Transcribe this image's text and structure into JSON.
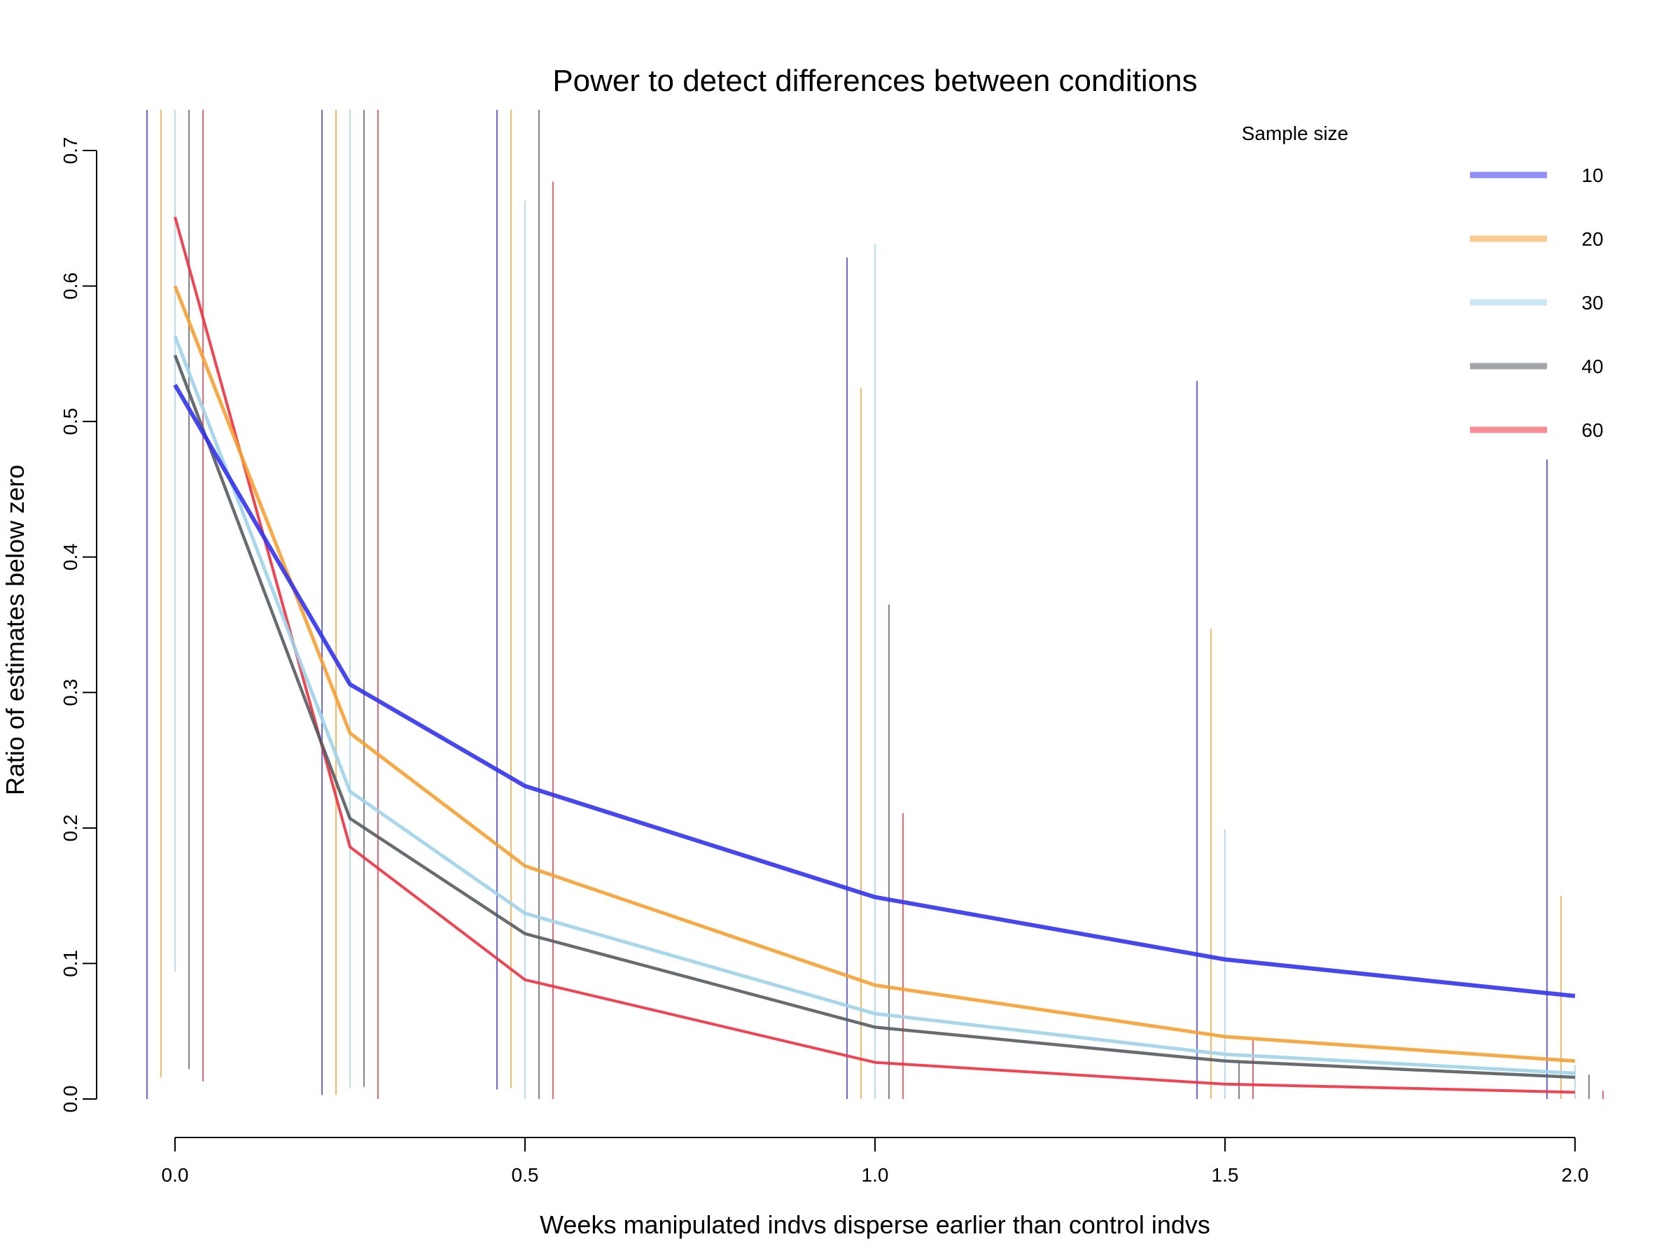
{
  "chart_data": {
    "type": "line",
    "title": "Power to detect differences between conditions",
    "xlabel": "Weeks manipulated indvs disperse earlier than control indvs",
    "ylabel": "Ratio of estimates below zero",
    "xlim": [
      -0.05,
      2.05
    ],
    "ylim": [
      0.0,
      0.7
    ],
    "x_ticks": [
      "0.0",
      "0.5",
      "1.0",
      "1.5",
      "2.0"
    ],
    "y_ticks": [
      "0.0",
      "0.1",
      "0.2",
      "0.3",
      "0.4",
      "0.5",
      "0.6",
      "0.7"
    ],
    "legend_title": "Sample size",
    "legend_position": "top-right",
    "grid": false,
    "x": [
      0.0,
      0.25,
      0.5,
      1.0,
      1.5,
      2.0
    ],
    "series": [
      {
        "name": "10",
        "color": "#3333ee",
        "values": [
          0.527,
          0.306,
          0.231,
          0.149,
          0.103,
          0.076
        ],
        "ranges": [
          {
            "x": 0.0,
            "low": 0.0,
            "high": 0.73
          },
          {
            "x": 0.25,
            "low": 0.003,
            "high": 0.73
          },
          {
            "x": 0.5,
            "low": 0.007,
            "high": 0.73
          },
          {
            "x": 1.0,
            "low": 0.0,
            "high": 0.621
          },
          {
            "x": 1.5,
            "low": 0.0,
            "high": 0.53
          },
          {
            "x": 2.0,
            "low": 0.0,
            "high": 0.472
          }
        ]
      },
      {
        "name": "20",
        "color": "#f5a030",
        "values": [
          0.6,
          0.27,
          0.172,
          0.084,
          0.046,
          0.028
        ],
        "ranges": [
          {
            "x": 0.0,
            "low": 0.016,
            "high": 0.73
          },
          {
            "x": 0.25,
            "low": 0.003,
            "high": 0.73
          },
          {
            "x": 0.5,
            "low": 0.008,
            "high": 0.73
          },
          {
            "x": 1.0,
            "low": 0.0,
            "high": 0.525
          },
          {
            "x": 1.5,
            "low": 0.0,
            "high": 0.347
          },
          {
            "x": 2.0,
            "low": 0.0,
            "high": 0.15
          }
        ]
      },
      {
        "name": "30",
        "color": "#9ed3ea",
        "values": [
          0.563,
          0.227,
          0.137,
          0.063,
          0.033,
          0.019
        ],
        "ranges": [
          {
            "x": 0.0,
            "low": 0.094,
            "high": 0.73
          },
          {
            "x": 0.25,
            "low": 0.008,
            "high": 0.73
          },
          {
            "x": 0.5,
            "low": 0.0,
            "high": 0.663
          },
          {
            "x": 1.0,
            "low": 0.0,
            "high": 0.631
          },
          {
            "x": 1.5,
            "low": 0.0,
            "high": 0.199
          },
          {
            "x": 2.0,
            "low": 0.0,
            "high": 0.025
          }
        ]
      },
      {
        "name": "40",
        "color": "#555c60",
        "values": [
          0.549,
          0.207,
          0.122,
          0.053,
          0.028,
          0.016
        ],
        "ranges": [
          {
            "x": 0.0,
            "low": 0.022,
            "high": 0.73
          },
          {
            "x": 0.25,
            "low": 0.009,
            "high": 0.73
          },
          {
            "x": 0.5,
            "low": 0.0,
            "high": 0.73
          },
          {
            "x": 1.0,
            "low": 0.0,
            "high": 0.365
          },
          {
            "x": 1.5,
            "low": 0.0,
            "high": 0.027
          },
          {
            "x": 2.0,
            "low": 0.0,
            "high": 0.018
          }
        ]
      },
      {
        "name": "60",
        "color": "#ee3040",
        "values": [
          0.651,
          0.186,
          0.088,
          0.027,
          0.011,
          0.005
        ],
        "ranges": [
          {
            "x": 0.0,
            "low": 0.013,
            "high": 0.73
          },
          {
            "x": 0.25,
            "low": 0.0,
            "high": 0.73
          },
          {
            "x": 0.5,
            "low": 0.0,
            "high": 0.677
          },
          {
            "x": 1.0,
            "low": 0.0,
            "high": 0.211
          },
          {
            "x": 1.5,
            "low": 0.0,
            "high": 0.044
          },
          {
            "x": 2.0,
            "low": 0.0,
            "high": 0.006
          }
        ]
      }
    ]
  }
}
